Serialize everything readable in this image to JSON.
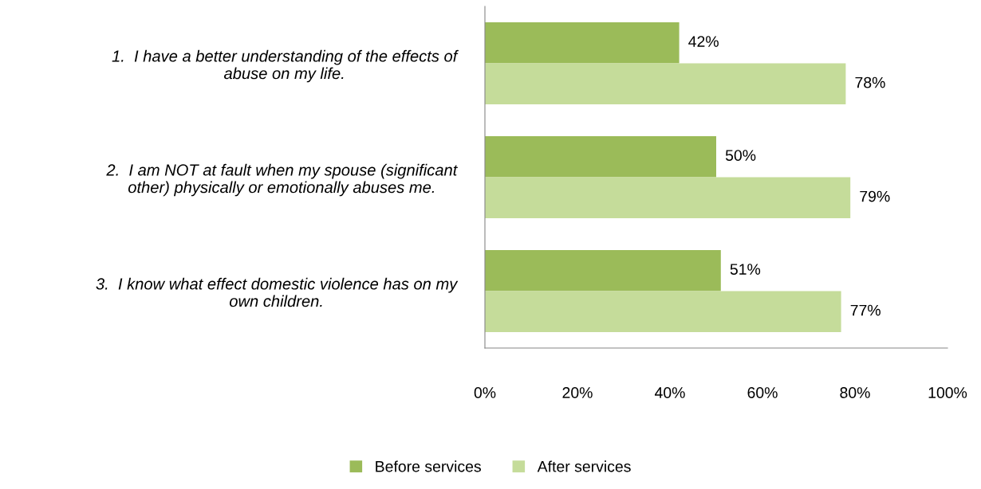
{
  "chart_data": {
    "type": "bar",
    "orientation": "horizontal",
    "categories": [
      "1.  I have a better understanding of the effects of\nabuse on my life.",
      "2.  I am NOT at fault when my spouse (significant\nother) physically or emotionally abuses me.",
      "3.  I know what effect domestic violence has on my\nown children."
    ],
    "series": [
      {
        "name": "Before services",
        "color": "#9bbb59",
        "values": [
          42,
          50,
          51
        ],
        "value_labels": [
          "42%",
          "50%",
          "51%"
        ]
      },
      {
        "name": "After services",
        "color": "#c5dc9a",
        "values": [
          78,
          79,
          77
        ],
        "value_labels": [
          "78%",
          "79%",
          "77%"
        ]
      }
    ],
    "xlim": [
      0,
      100
    ],
    "xticks": [
      {
        "value": 0,
        "label": "0%"
      },
      {
        "value": 20,
        "label": "20%"
      },
      {
        "value": 40,
        "label": "40%"
      },
      {
        "value": 60,
        "label": "60%"
      },
      {
        "value": 80,
        "label": "80%"
      },
      {
        "value": 100,
        "label": "100%"
      }
    ],
    "grid": false,
    "legend": "bottom"
  }
}
